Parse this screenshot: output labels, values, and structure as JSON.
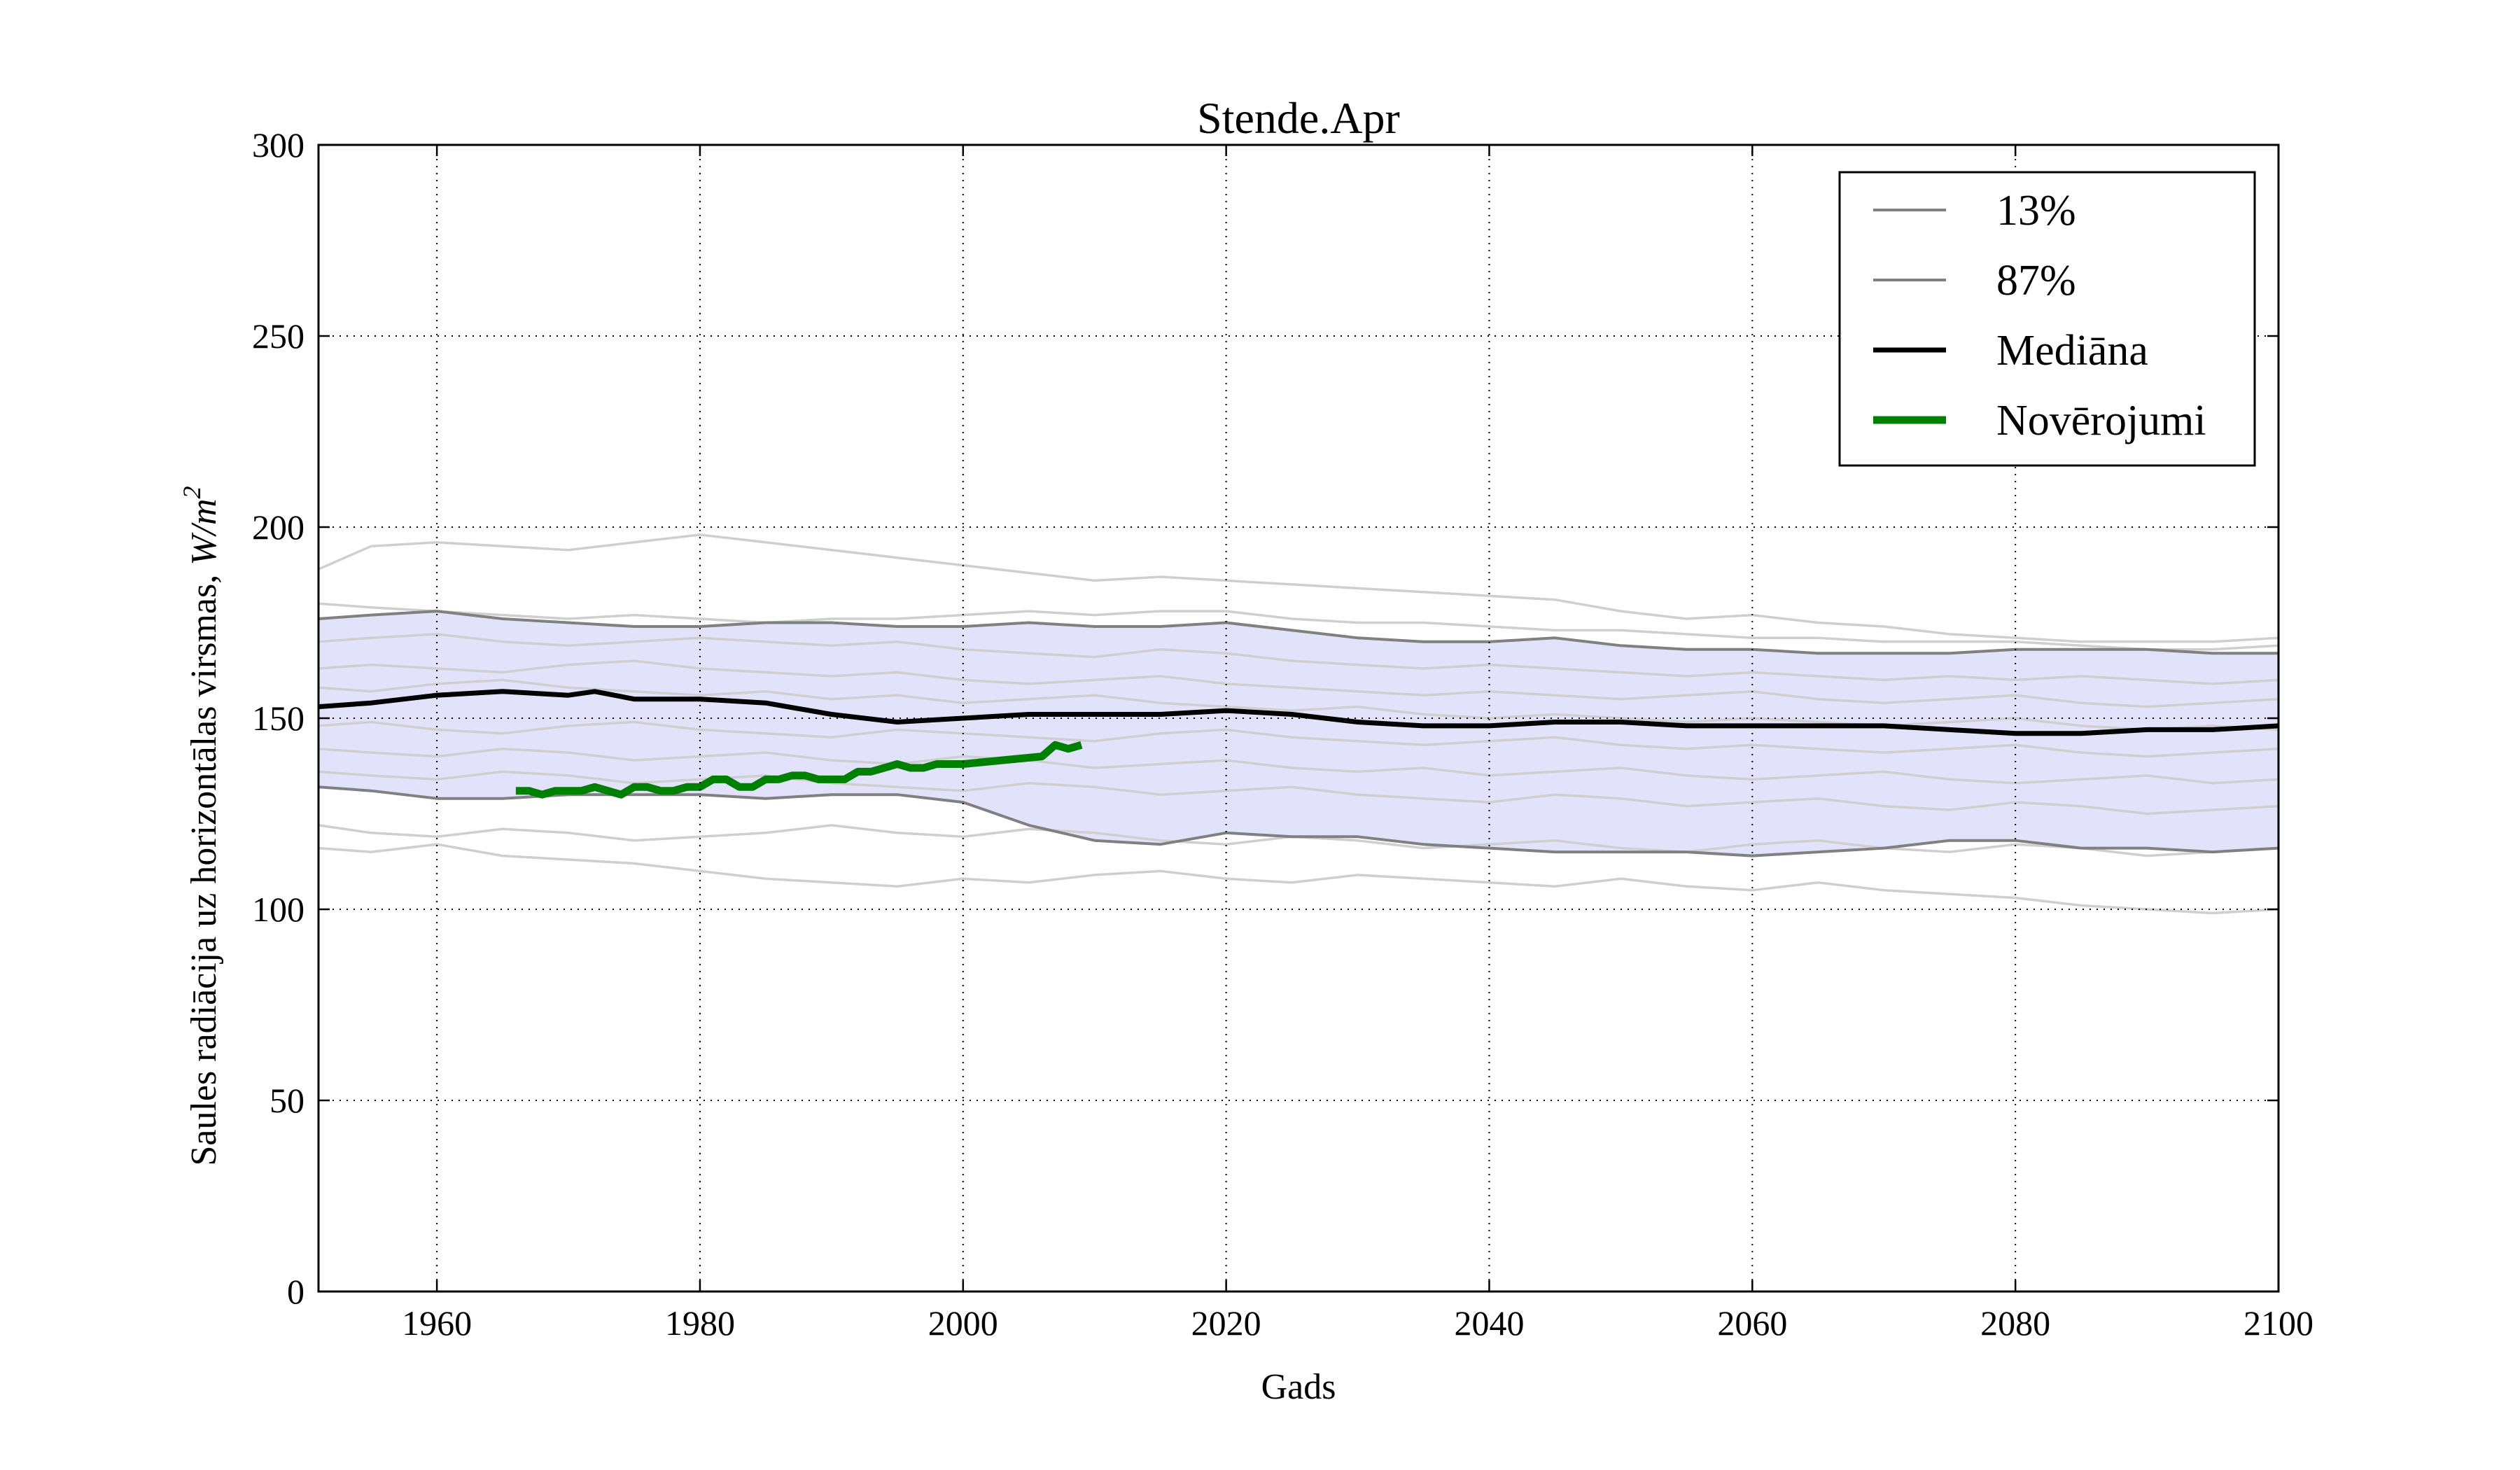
{
  "chart_data": {
    "type": "line",
    "title": "Stende.Apr",
    "xlabel": "Gads",
    "ylabel_prefix": "Saules radiācija uz horizontālas virsmas, ",
    "ylabel_unit": "W/m",
    "ylabel_unit_exp": "2",
    "xlim": [
      1951,
      2100
    ],
    "ylim": [
      0,
      300
    ],
    "x_ticks": [
      "1960",
      "1980",
      "2000",
      "2020",
      "2040",
      "2060",
      "2080",
      "2100"
    ],
    "y_ticks": [
      "0",
      "50",
      "100",
      "150",
      "200",
      "250",
      "300"
    ],
    "grid": true,
    "legend_position": "top-right",
    "legend": [
      "13%",
      "87%",
      "Mediāna",
      "Novērojumi"
    ],
    "colors": {
      "band_fill": "#e2e2fa",
      "percentile_line": "#808080",
      "member_line": "#cfcfcf",
      "median": "#000000",
      "observations": "#008000"
    },
    "band": {
      "x": [
        1951,
        1955,
        1960,
        1965,
        1970,
        1975,
        1980,
        1985,
        1990,
        1995,
        2000,
        2005,
        2010,
        2015,
        2020,
        2025,
        2030,
        2035,
        2040,
        2045,
        2050,
        2055,
        2060,
        2065,
        2070,
        2075,
        2080,
        2085,
        2090,
        2095,
        2100
      ],
      "lower": [
        132,
        131,
        129,
        129,
        130,
        130,
        130,
        129,
        130,
        130,
        128,
        122,
        118,
        117,
        120,
        119,
        119,
        117,
        116,
        115,
        115,
        115,
        114,
        115,
        116,
        118,
        118,
        116,
        116,
        115,
        116
      ],
      "upper": [
        176,
        177,
        178,
        176,
        175,
        174,
        174,
        175,
        175,
        174,
        174,
        175,
        174,
        174,
        175,
        173,
        171,
        170,
        170,
        171,
        169,
        168,
        168,
        167,
        167,
        167,
        168,
        168,
        168,
        167,
        167
      ]
    },
    "series": [
      {
        "name": "13%",
        "x": [
          1951,
          1955,
          1960,
          1965,
          1970,
          1975,
          1980,
          1985,
          1990,
          1995,
          2000,
          2005,
          2010,
          2015,
          2020,
          2025,
          2030,
          2035,
          2040,
          2045,
          2050,
          2055,
          2060,
          2065,
          2070,
          2075,
          2080,
          2085,
          2090,
          2095,
          2100
        ],
        "y": [
          132,
          131,
          129,
          129,
          130,
          130,
          130,
          129,
          130,
          130,
          128,
          122,
          118,
          117,
          120,
          119,
          119,
          117,
          116,
          115,
          115,
          115,
          114,
          115,
          116,
          118,
          118,
          116,
          116,
          115,
          116
        ]
      },
      {
        "name": "87%",
        "x": [
          1951,
          1955,
          1960,
          1965,
          1970,
          1975,
          1980,
          1985,
          1990,
          1995,
          2000,
          2005,
          2010,
          2015,
          2020,
          2025,
          2030,
          2035,
          2040,
          2045,
          2050,
          2055,
          2060,
          2065,
          2070,
          2075,
          2080,
          2085,
          2090,
          2095,
          2100
        ],
        "y": [
          176,
          177,
          178,
          176,
          175,
          174,
          174,
          175,
          175,
          174,
          174,
          175,
          174,
          174,
          175,
          173,
          171,
          170,
          170,
          171,
          169,
          168,
          168,
          167,
          167,
          167,
          168,
          168,
          168,
          167,
          167
        ]
      },
      {
        "name": "Mediāna",
        "x": [
          1951,
          1955,
          1960,
          1965,
          1970,
          1972,
          1975,
          1980,
          1985,
          1990,
          1995,
          2000,
          2005,
          2010,
          2015,
          2020,
          2025,
          2030,
          2035,
          2040,
          2045,
          2050,
          2055,
          2060,
          2065,
          2070,
          2075,
          2080,
          2085,
          2090,
          2095,
          2100
        ],
        "y": [
          153,
          154,
          156,
          157,
          156,
          157,
          155,
          155,
          154,
          151,
          149,
          150,
          151,
          151,
          151,
          152,
          151,
          149,
          148,
          148,
          149,
          149,
          148,
          148,
          148,
          148,
          147,
          146,
          146,
          147,
          147,
          148
        ]
      },
      {
        "name": "Novērojumi",
        "x": [
          1966,
          1967,
          1968,
          1969,
          1970,
          1971,
          1972,
          1973,
          1974,
          1975,
          1976,
          1977,
          1978,
          1979,
          1980,
          1981,
          1982,
          1983,
          1984,
          1985,
          1986,
          1987,
          1988,
          1989,
          1990,
          1991,
          1992,
          1993,
          1994,
          1995,
          1996,
          1997,
          1998,
          1999,
          2000,
          2006,
          2007,
          2008,
          2009
        ],
        "y": [
          131,
          131,
          130,
          131,
          131,
          131,
          132,
          131,
          130,
          132,
          132,
          131,
          131,
          132,
          132,
          134,
          134,
          132,
          132,
          134,
          134,
          135,
          135,
          134,
          134,
          134,
          136,
          136,
          137,
          138,
          137,
          137,
          138,
          138,
          138,
          140,
          143,
          142,
          143
        ]
      }
    ],
    "members": [
      {
        "x": [
          1951,
          1955,
          1960,
          1965,
          1970,
          1975,
          1980,
          1985,
          1990,
          1995,
          2000,
          2005,
          2010,
          2015,
          2020,
          2025,
          2030,
          2035,
          2040,
          2045,
          2050,
          2055,
          2060,
          2065,
          2070,
          2075,
          2080,
          2085,
          2090,
          2095,
          2100
        ],
        "y": [
          189,
          195,
          196,
          195,
          194,
          196,
          198,
          196,
          194,
          192,
          190,
          188,
          186,
          187,
          186,
          185,
          184,
          183,
          182,
          181,
          178,
          176,
          177,
          175,
          174,
          172,
          171,
          170,
          170,
          170,
          171
        ]
      },
      {
        "x": [
          1951,
          1955,
          1960,
          1965,
          1970,
          1975,
          1980,
          1985,
          1990,
          1995,
          2000,
          2005,
          2010,
          2015,
          2020,
          2025,
          2030,
          2035,
          2040,
          2045,
          2050,
          2055,
          2060,
          2065,
          2070,
          2075,
          2080,
          2085,
          2090,
          2095,
          2100
        ],
        "y": [
          180,
          179,
          178,
          177,
          176,
          177,
          176,
          175,
          176,
          176,
          177,
          178,
          177,
          178,
          178,
          176,
          175,
          175,
          174,
          173,
          173,
          172,
          171,
          171,
          170,
          170,
          170,
          169,
          168,
          168,
          169
        ]
      },
      {
        "x": [
          1951,
          1955,
          1960,
          1965,
          1970,
          1975,
          1980,
          1985,
          1990,
          1995,
          2000,
          2005,
          2010,
          2015,
          2020,
          2025,
          2030,
          2035,
          2040,
          2045,
          2050,
          2055,
          2060,
          2065,
          2070,
          2075,
          2080,
          2085,
          2090,
          2095,
          2100
        ],
        "y": [
          170,
          171,
          172,
          170,
          169,
          170,
          171,
          170,
          169,
          170,
          168,
          167,
          166,
          168,
          167,
          165,
          164,
          163,
          164,
          163,
          162,
          161,
          162,
          161,
          160,
          161,
          160,
          161,
          160,
          159,
          160
        ]
      },
      {
        "x": [
          1951,
          1955,
          1960,
          1965,
          1970,
          1975,
          1980,
          1985,
          1990,
          1995,
          2000,
          2005,
          2010,
          2015,
          2020,
          2025,
          2030,
          2035,
          2040,
          2045,
          2050,
          2055,
          2060,
          2065,
          2070,
          2075,
          2080,
          2085,
          2090,
          2095,
          2100
        ],
        "y": [
          163,
          164,
          163,
          162,
          164,
          165,
          163,
          162,
          161,
          162,
          160,
          159,
          160,
          161,
          159,
          158,
          157,
          156,
          157,
          156,
          155,
          156,
          157,
          155,
          154,
          155,
          156,
          154,
          153,
          154,
          155
        ]
      },
      {
        "x": [
          1951,
          1955,
          1960,
          1965,
          1970,
          1975,
          1980,
          1985,
          1990,
          1995,
          2000,
          2005,
          2010,
          2015,
          2020,
          2025,
          2030,
          2035,
          2040,
          2045,
          2050,
          2055,
          2060,
          2065,
          2070,
          2075,
          2080,
          2085,
          2090,
          2095,
          2100
        ],
        "y": [
          158,
          157,
          159,
          160,
          158,
          157,
          156,
          157,
          155,
          156,
          154,
          155,
          156,
          154,
          153,
          152,
          153,
          151,
          150,
          151,
          150,
          149,
          150,
          149,
          148,
          149,
          150,
          148,
          147,
          148,
          147
        ]
      },
      {
        "x": [
          1951,
          1955,
          1960,
          1965,
          1970,
          1975,
          1980,
          1985,
          1990,
          1995,
          2000,
          2005,
          2010,
          2015,
          2020,
          2025,
          2030,
          2035,
          2040,
          2045,
          2050,
          2055,
          2060,
          2065,
          2070,
          2075,
          2080,
          2085,
          2090,
          2095,
          2100
        ],
        "y": [
          148,
          149,
          147,
          146,
          148,
          149,
          147,
          146,
          145,
          147,
          146,
          145,
          144,
          146,
          147,
          145,
          144,
          143,
          144,
          145,
          143,
          142,
          143,
          142,
          141,
          142,
          143,
          141,
          140,
          141,
          142
        ]
      },
      {
        "x": [
          1951,
          1955,
          1960,
          1965,
          1970,
          1975,
          1980,
          1985,
          1990,
          1995,
          2000,
          2005,
          2010,
          2015,
          2020,
          2025,
          2030,
          2035,
          2040,
          2045,
          2050,
          2055,
          2060,
          2065,
          2070,
          2075,
          2080,
          2085,
          2090,
          2095,
          2100
        ],
        "y": [
          142,
          141,
          140,
          142,
          141,
          139,
          140,
          141,
          139,
          138,
          140,
          139,
          137,
          138,
          139,
          137,
          136,
          137,
          135,
          136,
          137,
          135,
          134,
          135,
          136,
          134,
          133,
          134,
          135,
          133,
          134
        ]
      },
      {
        "x": [
          1951,
          1955,
          1960,
          1965,
          1970,
          1975,
          1980,
          1985,
          1990,
          1995,
          2000,
          2005,
          2010,
          2015,
          2020,
          2025,
          2030,
          2035,
          2040,
          2045,
          2050,
          2055,
          2060,
          2065,
          2070,
          2075,
          2080,
          2085,
          2090,
          2095,
          2100
        ],
        "y": [
          136,
          135,
          134,
          136,
          135,
          133,
          134,
          135,
          133,
          132,
          131,
          133,
          132,
          130,
          131,
          132,
          130,
          129,
          128,
          130,
          129,
          127,
          128,
          129,
          127,
          126,
          128,
          127,
          125,
          126,
          127
        ]
      },
      {
        "x": [
          1951,
          1955,
          1960,
          1965,
          1970,
          1975,
          1980,
          1985,
          1990,
          1995,
          2000,
          2005,
          2010,
          2015,
          2020,
          2025,
          2030,
          2035,
          2040,
          2045,
          2050,
          2055,
          2060,
          2065,
          2070,
          2075,
          2080,
          2085,
          2090,
          2095,
          2100
        ],
        "y": [
          122,
          120,
          119,
          121,
          120,
          118,
          119,
          120,
          122,
          120,
          119,
          121,
          120,
          118,
          117,
          119,
          118,
          116,
          117,
          118,
          116,
          115,
          117,
          118,
          116,
          115,
          117,
          116,
          114,
          115,
          116
        ]
      },
      {
        "x": [
          1951,
          1955,
          1960,
          1965,
          1970,
          1975,
          1980,
          1985,
          1990,
          1995,
          2000,
          2005,
          2010,
          2015,
          2020,
          2025,
          2030,
          2035,
          2040,
          2045,
          2050,
          2055,
          2060,
          2065,
          2070,
          2075,
          2080,
          2085,
          2090,
          2095,
          2100
        ],
        "y": [
          116,
          115,
          117,
          114,
          113,
          112,
          110,
          108,
          107,
          106,
          108,
          107,
          109,
          110,
          108,
          107,
          109,
          108,
          107,
          106,
          108,
          106,
          105,
          107,
          105,
          104,
          103,
          101,
          100,
          99,
          100
        ]
      }
    ]
  }
}
